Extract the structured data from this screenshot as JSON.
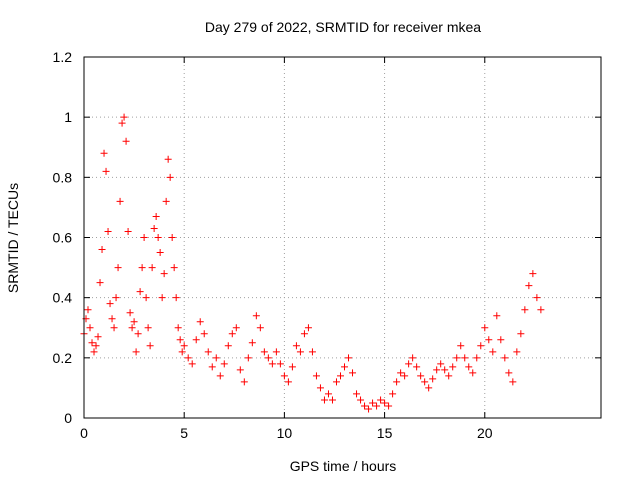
{
  "chart_data": {
    "type": "scatter",
    "title": "Day 279 of 2022, SRMTID for receiver mkea",
    "xlabel": "GPS time / hours",
    "ylabel": "SRMTID / TECUs",
    "xlim": [
      0,
      25.8
    ],
    "ylim": [
      0,
      1.2
    ],
    "xticks": [
      0,
      5,
      10,
      15,
      20
    ],
    "xtick_labels": [
      "0",
      "5",
      "10",
      "15",
      "20"
    ],
    "yticks": [
      0,
      0.2,
      0.4,
      0.6,
      0.8,
      1,
      1.2
    ],
    "ytick_labels": [
      "0",
      "0.2",
      "0.4",
      "0.6",
      "0.8",
      "1",
      "1.2"
    ],
    "grid": true,
    "marker": "plus",
    "series": [
      {
        "name": "SRMTID",
        "color": "#ff0000",
        "x": [
          0.0,
          0.1,
          0.2,
          0.3,
          0.4,
          0.5,
          0.6,
          0.7,
          0.8,
          0.9,
          1.0,
          1.1,
          1.2,
          1.3,
          1.4,
          1.5,
          1.6,
          1.7,
          1.8,
          1.9,
          2.0,
          2.1,
          2.2,
          2.3,
          2.4,
          2.5,
          2.6,
          2.7,
          2.8,
          2.9,
          3.0,
          3.1,
          3.2,
          3.3,
          3.4,
          3.5,
          3.6,
          3.7,
          3.8,
          3.9,
          4.0,
          4.1,
          4.2,
          4.3,
          4.4,
          4.5,
          4.6,
          4.7,
          4.8,
          4.9,
          5.0,
          5.2,
          5.4,
          5.6,
          5.8,
          6.0,
          6.2,
          6.4,
          6.6,
          6.8,
          7.0,
          7.2,
          7.4,
          7.6,
          7.8,
          8.0,
          8.2,
          8.4,
          8.6,
          8.8,
          9.0,
          9.2,
          9.4,
          9.6,
          9.8,
          10.0,
          10.2,
          10.4,
          10.6,
          10.8,
          11.0,
          11.2,
          11.4,
          11.6,
          11.8,
          12.0,
          12.2,
          12.4,
          12.6,
          12.8,
          13.0,
          13.2,
          13.4,
          13.6,
          13.8,
          14.0,
          14.2,
          14.4,
          14.6,
          14.8,
          15.0,
          15.2,
          15.4,
          15.6,
          15.8,
          16.0,
          16.2,
          16.4,
          16.6,
          16.8,
          17.0,
          17.2,
          17.4,
          17.6,
          17.8,
          18.0,
          18.2,
          18.4,
          18.6,
          18.8,
          19.0,
          19.2,
          19.4,
          19.6,
          19.8,
          20.0,
          20.2,
          20.4,
          20.6,
          20.8,
          21.0,
          21.2,
          21.4,
          21.6,
          21.8,
          22.0,
          22.2,
          22.4,
          22.6,
          22.8
        ],
        "y": [
          0.28,
          0.33,
          0.36,
          0.3,
          0.25,
          0.22,
          0.24,
          0.27,
          0.45,
          0.56,
          0.88,
          0.82,
          0.62,
          0.38,
          0.33,
          0.3,
          0.4,
          0.5,
          0.72,
          0.98,
          1.0,
          0.92,
          0.62,
          0.35,
          0.3,
          0.32,
          0.22,
          0.28,
          0.42,
          0.5,
          0.6,
          0.4,
          0.3,
          0.24,
          0.5,
          0.63,
          0.67,
          0.6,
          0.55,
          0.4,
          0.48,
          0.72,
          0.86,
          0.8,
          0.6,
          0.5,
          0.4,
          0.3,
          0.26,
          0.22,
          0.24,
          0.2,
          0.18,
          0.26,
          0.32,
          0.28,
          0.22,
          0.17,
          0.2,
          0.14,
          0.18,
          0.24,
          0.28,
          0.3,
          0.16,
          0.12,
          0.2,
          0.25,
          0.34,
          0.3,
          0.22,
          0.2,
          0.18,
          0.22,
          0.18,
          0.14,
          0.12,
          0.17,
          0.24,
          0.22,
          0.28,
          0.3,
          0.22,
          0.14,
          0.1,
          0.06,
          0.08,
          0.06,
          0.12,
          0.14,
          0.17,
          0.2,
          0.15,
          0.08,
          0.06,
          0.04,
          0.03,
          0.05,
          0.04,
          0.06,
          0.05,
          0.04,
          0.08,
          0.12,
          0.15,
          0.14,
          0.18,
          0.2,
          0.17,
          0.14,
          0.12,
          0.1,
          0.13,
          0.16,
          0.18,
          0.16,
          0.14,
          0.17,
          0.2,
          0.24,
          0.2,
          0.17,
          0.15,
          0.2,
          0.24,
          0.3,
          0.26,
          0.22,
          0.34,
          0.26,
          0.2,
          0.15,
          0.12,
          0.22,
          0.28,
          0.36,
          0.44,
          0.48,
          0.4,
          0.36
        ]
      }
    ]
  }
}
